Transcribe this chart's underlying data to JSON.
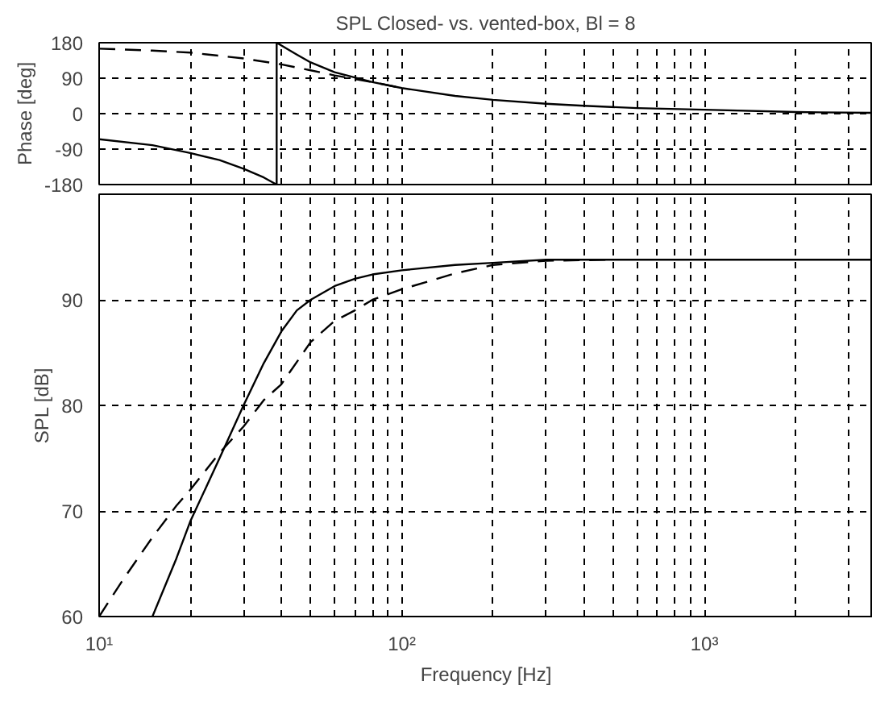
{
  "chart_data": [
    {
      "type": "line",
      "title": "SPL Closed- vs. vented-box, Bl = 8",
      "ylabel": "Phase [deg]",
      "tick_labels": "y",
      "log": "x",
      "grid": true,
      "xlim": [
        10,
        3600
      ],
      "xticks": [
        {
          "value": 10,
          "label": null
        },
        {
          "value": 20,
          "label": null
        },
        {
          "value": 30,
          "label": null
        },
        {
          "value": 40,
          "label": null
        },
        {
          "value": 50,
          "label": null
        },
        {
          "value": 60,
          "label": null
        },
        {
          "value": 70,
          "label": null
        },
        {
          "value": 80,
          "label": null
        },
        {
          "value": 90,
          "label": null
        },
        {
          "value": 100,
          "label": null
        },
        {
          "value": 200,
          "label": null
        },
        {
          "value": 300,
          "label": null
        },
        {
          "value": 400,
          "label": null
        },
        {
          "value": 500,
          "label": null
        },
        {
          "value": 600,
          "label": null
        },
        {
          "value": 700,
          "label": null
        },
        {
          "value": 800,
          "label": null
        },
        {
          "value": 900,
          "label": null
        },
        {
          "value": 1000,
          "label": null
        },
        {
          "value": 2000,
          "label": null
        },
        {
          "value": 3000,
          "label": null
        }
      ],
      "ylim": [
        -180,
        180
      ],
      "yticks": [
        -180,
        -90,
        0,
        90,
        180
      ],
      "series": [
        {
          "color": "#000000",
          "line_style": "solid",
          "x": [
            10,
            15,
            20,
            25,
            30,
            35,
            38.6,
            38.6,
            45,
            50,
            60,
            80,
            100,
            150,
            200,
            300,
            400,
            600,
            1000,
            2000,
            3600
          ],
          "values": [
            -65,
            -80,
            -100,
            -118,
            -140,
            -162,
            -180,
            180,
            150,
            130,
            105,
            80,
            65,
            45,
            35,
            25,
            20,
            14,
            10,
            4,
            2
          ]
        },
        {
          "color": "#000000",
          "line_style": "dashed",
          "x": [
            10,
            15,
            20,
            30,
            40,
            50,
            60,
            70,
            80,
            100
          ],
          "values": [
            165,
            160,
            155,
            140,
            125,
            110,
            97,
            88,
            80,
            65
          ]
        }
      ]
    },
    {
      "type": "line",
      "xlabel": "Frequency [Hz]",
      "ylabel": "SPL [dB]",
      "log": "x",
      "grid": true,
      "xlim": [
        10,
        3600
      ],
      "xticks": [
        {
          "value": 10,
          "label": "10¹"
        },
        {
          "value": 20,
          "label": null
        },
        {
          "value": 30,
          "label": null
        },
        {
          "value": 40,
          "label": null
        },
        {
          "value": 50,
          "label": null
        },
        {
          "value": 60,
          "label": null
        },
        {
          "value": 70,
          "label": null
        },
        {
          "value": 80,
          "label": null
        },
        {
          "value": 90,
          "label": null
        },
        {
          "value": 100,
          "label": "10²"
        },
        {
          "value": 200,
          "label": null
        },
        {
          "value": 300,
          "label": null
        },
        {
          "value": 400,
          "label": null
        },
        {
          "value": 500,
          "label": null
        },
        {
          "value": 600,
          "label": null
        },
        {
          "value": 700,
          "label": null
        },
        {
          "value": 800,
          "label": null
        },
        {
          "value": 900,
          "label": null
        },
        {
          "value": 1000,
          "label": "10³"
        },
        {
          "value": 2000,
          "label": null
        },
        {
          "value": 3000,
          "label": null
        }
      ],
      "ylim": [
        60,
        100
      ],
      "yticks": [
        60,
        70,
        80,
        90
      ],
      "series": [
        {
          "color": "#000000",
          "line_style": "solid",
          "x": [
            15,
            18,
            20,
            25,
            30,
            35,
            40,
            45,
            50,
            60,
            70,
            80,
            100,
            150,
            200,
            300,
            500,
            1000,
            3600
          ],
          "values": [
            60,
            65.5,
            69,
            75,
            80,
            84,
            87,
            89,
            90,
            91.3,
            92,
            92.4,
            92.8,
            93.3,
            93.5,
            93.8,
            93.8,
            93.8,
            93.8
          ]
        },
        {
          "color": "#000000",
          "line_style": "dashed",
          "x": [
            10,
            12,
            15,
            18,
            20,
            25,
            30,
            35,
            40,
            50,
            60,
            70,
            80,
            100,
            150,
            200,
            300,
            500
          ],
          "values": [
            60,
            63.5,
            67.5,
            70.5,
            72,
            75.5,
            78,
            80.5,
            82,
            86,
            88,
            89,
            90,
            91,
            92.5,
            93.3,
            93.7,
            93.8
          ]
        }
      ]
    }
  ]
}
